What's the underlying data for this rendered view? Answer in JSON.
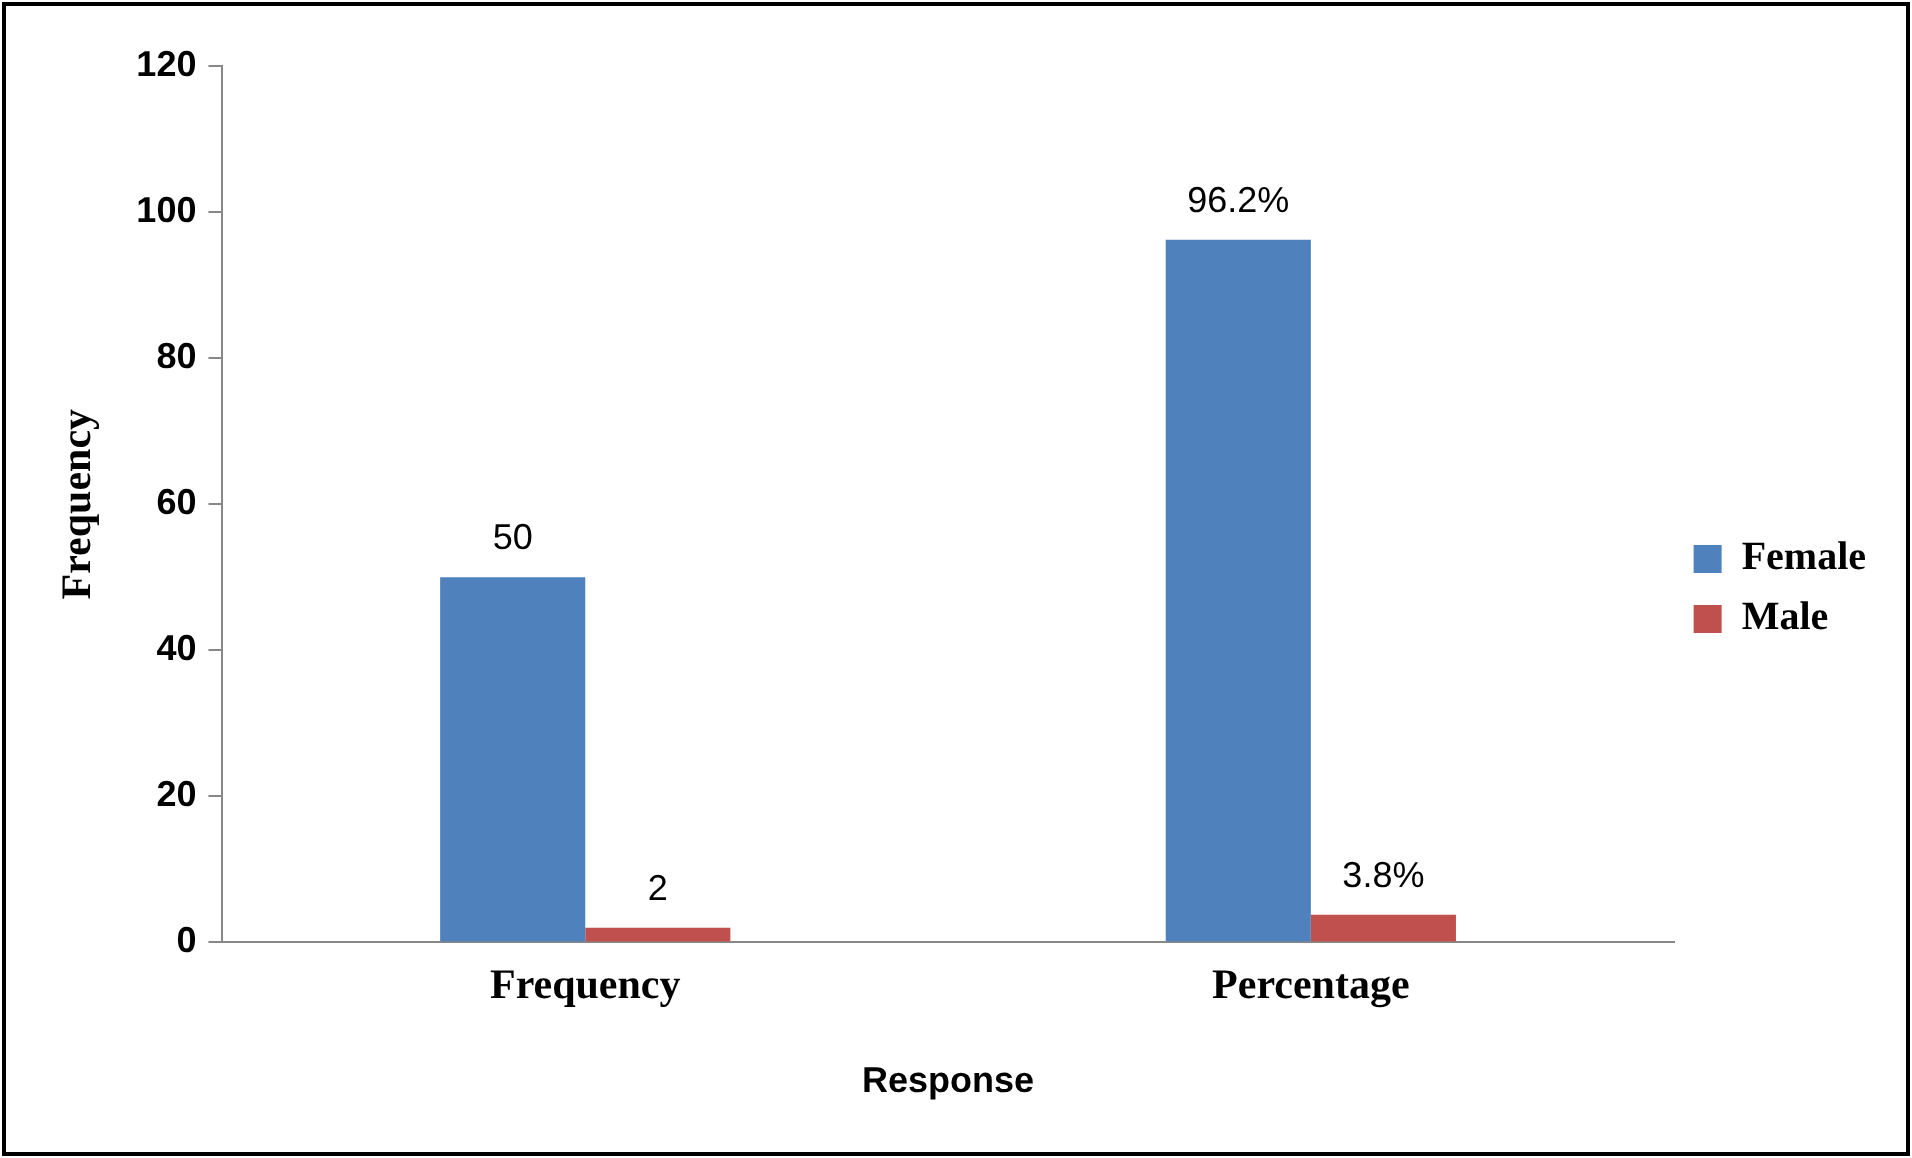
{
  "chart_data": {
    "type": "bar",
    "xlabel": "Response",
    "ylabel": "Frequency",
    "categories": [
      "Frequency",
      "Percentage"
    ],
    "series": [
      {
        "name": "Female",
        "color": "#4f81bd",
        "values": [
          50,
          96.2
        ],
        "value_labels": [
          "50",
          "96.2%"
        ]
      },
      {
        "name": "Male",
        "color": "#c0504d",
        "values": [
          2,
          3.8
        ],
        "value_labels": [
          "2",
          "3.8%"
        ]
      }
    ],
    "ylim": [
      0,
      120
    ],
    "yticks": [
      0,
      20,
      40,
      60,
      80,
      100,
      120
    ],
    "grid": false,
    "legend": "right"
  }
}
